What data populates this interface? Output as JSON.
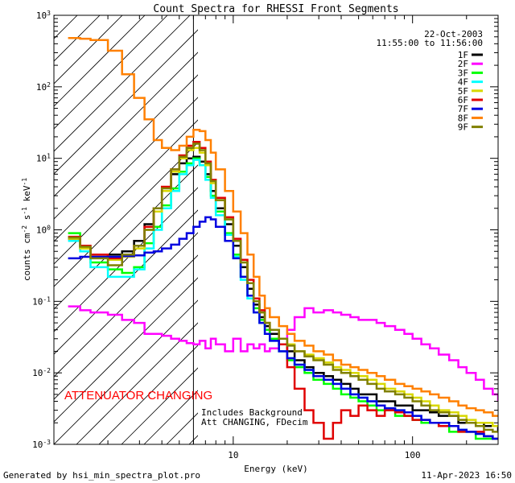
{
  "chart_data": {
    "type": "line",
    "title": "Count Spectra for RHESSI Front Segments",
    "xlabel": "Energy (keV)",
    "ylabel_parts": [
      "counts cm",
      "-2",
      " s",
      "-1",
      " keV",
      "-1"
    ],
    "xscale": "log",
    "yscale": "log",
    "xlim": [
      1,
      300
    ],
    "ylim": [
      0.001,
      1000
    ],
    "x_ticks": [
      {
        "value": 10,
        "label": "10"
      },
      {
        "value": 100,
        "label": "100"
      }
    ],
    "y_ticks": [
      {
        "value": 0.001,
        "mant": "10",
        "exp": "-3"
      },
      {
        "value": 0.01,
        "mant": "10",
        "exp": "-2"
      },
      {
        "value": 0.1,
        "mant": "10",
        "exp": "-1"
      },
      {
        "value": 1,
        "mant": "10",
        "exp": "0"
      },
      {
        "value": 10,
        "mant": "10",
        "exp": "1"
      },
      {
        "value": 100,
        "mant": "10",
        "exp": "2"
      },
      {
        "value": 1000,
        "mant": "10",
        "exp": "3"
      }
    ],
    "date": "22-Oct-2003",
    "time_range": "11:55:00 to 11:56:00",
    "attenuator_label": "ATTENUATOR CHANGING",
    "attenuator_color": "#ff0000",
    "notes": [
      "Includes Background",
      "Att CHANGING, FDecim"
    ],
    "hatched_region_kev": [
      1,
      6
    ],
    "boundary_kev": 6,
    "series": [
      {
        "name": "1F",
        "color": "#000000",
        "x": [
          1.2,
          1.4,
          1.6,
          2.0,
          2.4,
          2.8,
          3.2,
          3.6,
          4.0,
          4.5,
          5.0,
          5.5,
          6.0,
          6.5,
          7.0,
          7.5,
          8.0,
          9.0,
          10,
          11,
          12,
          13,
          14,
          15,
          16,
          18,
          20,
          22,
          25,
          28,
          32,
          36,
          40,
          45,
          50,
          56,
          63,
          70,
          80,
          90,
          100,
          112,
          125,
          140,
          160,
          180,
          200,
          225,
          250,
          280,
          300
        ],
        "y": [
          0.75,
          0.55,
          0.45,
          0.45,
          0.5,
          0.7,
          1.2,
          1.8,
          3.5,
          6,
          8.5,
          10,
          10.5,
          9,
          6,
          3.5,
          2.0,
          1.2,
          0.6,
          0.3,
          0.15,
          0.09,
          0.06,
          0.045,
          0.035,
          0.025,
          0.02,
          0.015,
          0.012,
          0.01,
          0.009,
          0.008,
          0.007,
          0.006,
          0.005,
          0.005,
          0.004,
          0.004,
          0.0035,
          0.0035,
          0.003,
          0.003,
          0.0028,
          0.0025,
          0.0025,
          0.002,
          0.002,
          0.002,
          0.0018,
          0.0018,
          0.0015
        ]
      },
      {
        "name": "2F",
        "color": "#ff00ff",
        "x": [
          1.2,
          1.4,
          1.6,
          2.0,
          2.4,
          2.8,
          3.2,
          3.6,
          4.0,
          4.5,
          5.0,
          5.5,
          6.0,
          6.5,
          7.0,
          7.5,
          8.0,
          9.0,
          10,
          11,
          12,
          13,
          14,
          15,
          16,
          18,
          20,
          22,
          25,
          28,
          32,
          36,
          40,
          45,
          50,
          56,
          63,
          70,
          80,
          90,
          100,
          112,
          125,
          140,
          160,
          180,
          200,
          225,
          250,
          280,
          300
        ],
        "y": [
          0.085,
          0.075,
          0.07,
          0.065,
          0.055,
          0.05,
          0.035,
          0.035,
          0.033,
          0.03,
          0.028,
          0.026,
          0.025,
          0.028,
          0.022,
          0.03,
          0.025,
          0.02,
          0.03,
          0.02,
          0.025,
          0.022,
          0.025,
          0.02,
          0.022,
          0.025,
          0.04,
          0.06,
          0.08,
          0.07,
          0.075,
          0.07,
          0.065,
          0.06,
          0.055,
          0.055,
          0.05,
          0.045,
          0.04,
          0.035,
          0.03,
          0.025,
          0.022,
          0.018,
          0.015,
          0.012,
          0.01,
          0.008,
          0.006,
          0.005,
          0.004
        ]
      },
      {
        "name": "3F",
        "color": "#00ff00",
        "x": [
          1.2,
          1.4,
          1.6,
          2.0,
          2.4,
          2.8,
          3.2,
          3.6,
          4.0,
          4.5,
          5.0,
          5.5,
          6.0,
          6.5,
          7.0,
          7.5,
          8.0,
          9.0,
          10,
          11,
          12,
          13,
          14,
          15,
          16,
          18,
          20,
          22,
          25,
          28,
          32,
          36,
          40,
          45,
          50,
          56,
          63,
          70,
          80,
          90,
          100,
          112,
          125,
          140,
          160,
          180,
          200,
          225,
          250,
          280,
          300
        ],
        "y": [
          0.9,
          0.55,
          0.35,
          0.28,
          0.25,
          0.3,
          0.65,
          1.1,
          2.2,
          3.8,
          6.5,
          8.5,
          10,
          8,
          5.5,
          3,
          1.8,
          0.9,
          0.45,
          0.22,
          0.12,
          0.08,
          0.055,
          0.04,
          0.03,
          0.02,
          0.015,
          0.012,
          0.01,
          0.008,
          0.007,
          0.006,
          0.005,
          0.0045,
          0.004,
          0.0035,
          0.003,
          0.003,
          0.0025,
          0.0025,
          0.0022,
          0.002,
          0.002,
          0.0018,
          0.0015,
          0.0015,
          0.0015,
          0.0012,
          0.0012,
          0.0012,
          0.0012
        ]
      },
      {
        "name": "4F",
        "color": "#00ffff",
        "x": [
          1.2,
          1.4,
          1.6,
          2.0,
          2.4,
          2.8,
          3.2,
          3.6,
          4.0,
          4.5,
          5.0,
          5.5,
          6.0,
          6.5,
          7.0,
          7.5,
          8.0,
          9.0,
          10,
          11,
          12,
          13,
          14,
          15,
          16,
          18,
          20,
          22,
          25,
          28,
          32,
          36,
          40,
          45,
          50,
          56,
          63,
          70,
          80,
          90,
          100,
          112,
          125,
          140,
          160,
          180,
          200,
          225,
          250,
          280,
          300
        ],
        "y": [
          0.7,
          0.5,
          0.3,
          0.22,
          0.22,
          0.28,
          0.55,
          1.0,
          2.0,
          3.5,
          6,
          8,
          9.5,
          8,
          5,
          2.8,
          1.6,
          0.85,
          0.42,
          0.2,
          0.11,
          0.07,
          0.05,
          0.035,
          0.028,
          0.02,
          0.016,
          0.013,
          0.011,
          0.009,
          0.008,
          0.007,
          0.006,
          0.005,
          0.0045,
          0.004,
          0.0035,
          0.0032,
          0.003,
          0.0028,
          0.0025,
          0.0022,
          0.002,
          0.002,
          0.0018,
          0.0016,
          0.0015,
          0.0014,
          0.0013,
          0.0012,
          0.0012
        ]
      },
      {
        "name": "5F",
        "color": "#d8d800",
        "x": [
          1.2,
          1.4,
          1.6,
          2.0,
          2.4,
          2.8,
          3.2,
          3.6,
          4.0,
          4.5,
          5.0,
          5.5,
          6.0,
          6.5,
          7.0,
          7.5,
          8.0,
          9.0,
          10,
          11,
          12,
          13,
          14,
          15,
          16,
          18,
          20,
          22,
          25,
          28,
          32,
          36,
          40,
          45,
          50,
          56,
          63,
          70,
          80,
          90,
          100,
          112,
          125,
          140,
          160,
          180,
          200,
          225,
          250,
          280,
          300
        ],
        "y": [
          0.75,
          0.55,
          0.42,
          0.38,
          0.42,
          0.55,
          1.0,
          1.8,
          3.5,
          6.5,
          10,
          13,
          14,
          12,
          8,
          4.5,
          2.6,
          1.4,
          0.7,
          0.35,
          0.18,
          0.1,
          0.07,
          0.05,
          0.04,
          0.03,
          0.025,
          0.02,
          0.018,
          0.016,
          0.014,
          0.012,
          0.011,
          0.01,
          0.009,
          0.008,
          0.007,
          0.006,
          0.0055,
          0.005,
          0.0045,
          0.004,
          0.0035,
          0.003,
          0.0028,
          0.0025,
          0.0022,
          0.002,
          0.002,
          0.0018,
          0.0018
        ]
      },
      {
        "name": "6F",
        "color": "#e00000",
        "x": [
          1.2,
          1.4,
          1.6,
          2.0,
          2.4,
          2.8,
          3.2,
          3.6,
          4.0,
          4.5,
          5.0,
          5.5,
          6.0,
          6.5,
          7.0,
          7.5,
          8.0,
          9.0,
          10,
          11,
          12,
          13,
          14,
          15,
          16,
          18,
          20,
          22,
          25,
          28,
          32,
          36,
          40,
          45,
          50,
          56,
          63,
          70,
          80,
          90,
          100,
          112,
          125,
          140,
          160,
          180,
          200,
          225,
          250,
          280,
          300
        ],
        "y": [
          0.8,
          0.6,
          0.45,
          0.4,
          0.45,
          0.6,
          1.1,
          2.0,
          4.0,
          7.0,
          11,
          15,
          17,
          14,
          9,
          5,
          2.8,
          1.5,
          0.75,
          0.38,
          0.2,
          0.11,
          0.075,
          0.05,
          0.04,
          0.025,
          0.012,
          0.006,
          0.003,
          0.002,
          0.0012,
          0.002,
          0.003,
          0.0025,
          0.0035,
          0.003,
          0.0025,
          0.003,
          0.0028,
          0.0025,
          0.0022,
          0.0022,
          0.002,
          0.0018,
          0.0018,
          0.0015,
          0.0015,
          0.0015,
          0.0013,
          0.0012,
          0.0012
        ]
      },
      {
        "name": "7F",
        "color": "#0000e0",
        "x": [
          1.2,
          1.4,
          1.6,
          2.0,
          2.4,
          2.8,
          3.2,
          3.6,
          4.0,
          4.5,
          5.0,
          5.5,
          6.0,
          6.5,
          7.0,
          7.5,
          8.0,
          9.0,
          10,
          11,
          12,
          13,
          14,
          15,
          16,
          18,
          20,
          22,
          25,
          28,
          32,
          36,
          40,
          45,
          50,
          56,
          63,
          70,
          80,
          90,
          100,
          112,
          125,
          140,
          160,
          180,
          200,
          225,
          250,
          280,
          300
        ],
        "y": [
          0.4,
          0.42,
          0.42,
          0.42,
          0.43,
          0.44,
          0.48,
          0.5,
          0.55,
          0.62,
          0.75,
          0.9,
          1.1,
          1.3,
          1.5,
          1.4,
          1.1,
          0.7,
          0.4,
          0.22,
          0.12,
          0.07,
          0.05,
          0.035,
          0.028,
          0.02,
          0.016,
          0.013,
          0.011,
          0.009,
          0.008,
          0.007,
          0.006,
          0.005,
          0.0045,
          0.004,
          0.0035,
          0.0032,
          0.003,
          0.0028,
          0.0025,
          0.0022,
          0.002,
          0.002,
          0.0018,
          0.0016,
          0.0015,
          0.0014,
          0.0013,
          0.0012,
          0.0012
        ]
      },
      {
        "name": "8F",
        "color": "#ff8000",
        "x": [
          1.2,
          1.4,
          1.6,
          2.0,
          2.4,
          2.8,
          3.2,
          3.6,
          4.0,
          4.5,
          5.0,
          5.5,
          6.0,
          6.5,
          7.0,
          7.5,
          8.0,
          9.0,
          10,
          11,
          12,
          13,
          14,
          15,
          16,
          18,
          20,
          22,
          25,
          28,
          32,
          36,
          40,
          45,
          50,
          56,
          63,
          70,
          80,
          90,
          100,
          112,
          125,
          140,
          160,
          180,
          200,
          225,
          250,
          280,
          300
        ],
        "y": [
          480,
          470,
          450,
          320,
          150,
          70,
          35,
          18,
          14,
          13,
          15,
          20,
          25,
          24,
          18,
          12,
          7,
          3.5,
          1.8,
          0.9,
          0.45,
          0.22,
          0.12,
          0.08,
          0.06,
          0.045,
          0.035,
          0.028,
          0.024,
          0.02,
          0.018,
          0.015,
          0.013,
          0.012,
          0.011,
          0.01,
          0.009,
          0.008,
          0.007,
          0.0065,
          0.006,
          0.0055,
          0.005,
          0.0045,
          0.004,
          0.0035,
          0.0032,
          0.003,
          0.0028,
          0.0025,
          0.0025
        ]
      },
      {
        "name": "9F",
        "color": "#808000",
        "x": [
          1.2,
          1.4,
          1.6,
          2.0,
          2.4,
          2.8,
          3.2,
          3.6,
          4.0,
          4.5,
          5.0,
          5.5,
          6.0,
          6.5,
          7.0,
          7.5,
          8.0,
          9.0,
          10,
          11,
          12,
          13,
          14,
          15,
          16,
          18,
          20,
          22,
          25,
          28,
          32,
          36,
          40,
          45,
          50,
          56,
          63,
          70,
          80,
          90,
          100,
          112,
          125,
          140,
          160,
          180,
          200,
          225,
          250,
          280,
          300
        ],
        "y": [
          0.78,
          0.58,
          0.4,
          0.32,
          0.45,
          0.6,
          1.0,
          2.0,
          3.8,
          7,
          10.5,
          14,
          16,
          13,
          8.5,
          4.8,
          2.6,
          1.4,
          0.7,
          0.35,
          0.18,
          0.1,
          0.07,
          0.05,
          0.04,
          0.03,
          0.024,
          0.02,
          0.017,
          0.015,
          0.013,
          0.011,
          0.01,
          0.009,
          0.008,
          0.007,
          0.006,
          0.0055,
          0.005,
          0.0045,
          0.004,
          0.0035,
          0.003,
          0.0028,
          0.0025,
          0.0022,
          0.002,
          0.0018,
          0.0016,
          0.0015,
          0.0015
        ]
      }
    ]
  },
  "footer": {
    "generator": "Generated by hsi_min_spectra_plot.pro",
    "timestamp": "11-Apr-2023 16:50"
  }
}
